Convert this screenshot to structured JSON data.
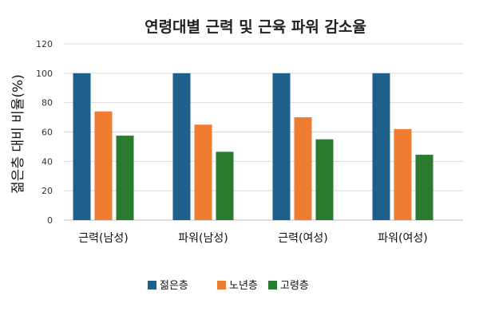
{
  "chart_data": {
    "type": "bar",
    "title": "연령대별 근력 및 근육 파워 감소율",
    "ylabel": "젊은층 대비 비율(%)",
    "xlabel": "",
    "ylim": [
      0,
      120
    ],
    "yticks": [
      "0",
      "20",
      "40",
      "60",
      "80",
      "100",
      "120"
    ],
    "categories": [
      "근력(남성)",
      "파워(남성)",
      "근력(여성)",
      "파워(여성)"
    ],
    "series": [
      {
        "name": "젊은층",
        "color": "#1f5f8b",
        "values": [
          100,
          100,
          100,
          100
        ]
      },
      {
        "name": "노년층",
        "color": "#ee7d31",
        "values": [
          74,
          65,
          70,
          62
        ]
      },
      {
        "name": "고령층",
        "color": "#2a7a2f",
        "values": [
          57.5,
          46.5,
          55,
          44.5
        ]
      }
    ],
    "grid": true,
    "legend_position": "bottom"
  }
}
